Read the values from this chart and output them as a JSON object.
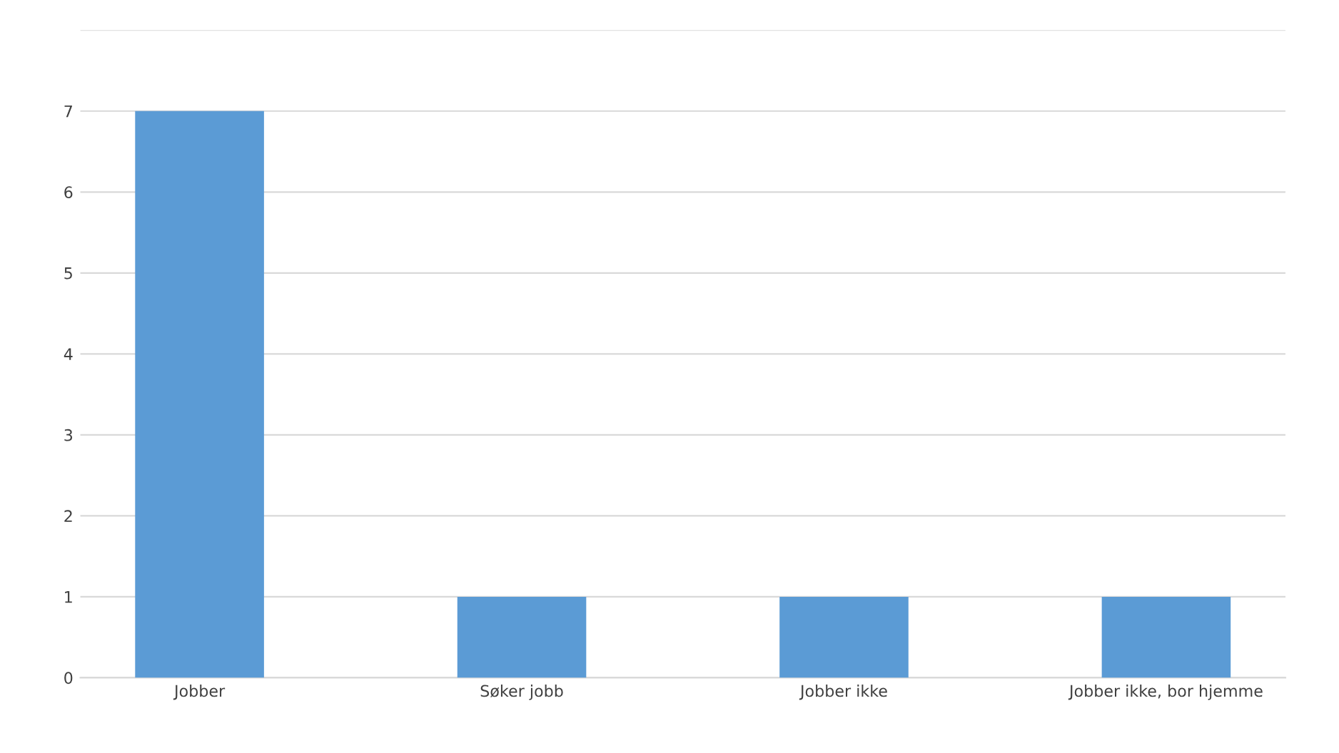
{
  "chart_data": {
    "type": "bar",
    "categories": [
      "Jobber",
      "Søker jobb",
      "Jobber ikke",
      "Jobber ikke, bor hjemme"
    ],
    "values": [
      7,
      1,
      1,
      1
    ],
    "color": "#5b9bd5",
    "ylim": [
      0,
      8
    ],
    "yticks": [
      0,
      1,
      2,
      3,
      4,
      5,
      6,
      7,
      {
        "value": 8,
        "label": null
      }
    ],
    "grid": "y"
  }
}
